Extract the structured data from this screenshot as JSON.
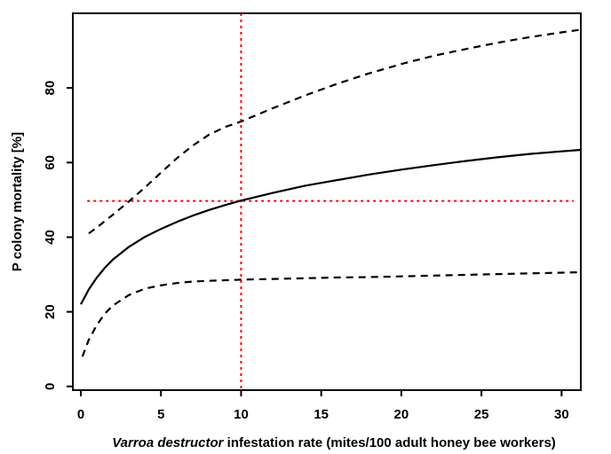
{
  "chart_data": {
    "type": "line",
    "title": "",
    "xlabel_italic": "Varroa destructor",
    "xlabel_rest": " infestation rate (mites/100 adult honey bee workers)",
    "ylabel": "P colony mortality [%]",
    "xlim": [
      -0.5,
      31.2
    ],
    "ylim": [
      -1,
      100
    ],
    "xticks": [
      0,
      5,
      10,
      15,
      20,
      25,
      30
    ],
    "yticks": [
      0,
      20,
      40,
      60,
      80
    ],
    "grid": false,
    "legend": "none",
    "series": [
      {
        "style": "solid",
        "color": "#000000",
        "x": [
          0,
          0.5,
          1,
          1.5,
          2,
          3,
          4,
          5,
          6,
          7,
          8,
          9,
          10,
          12,
          14,
          16,
          18,
          20,
          22,
          24,
          26,
          28,
          30,
          31.2
        ],
        "y": [
          22,
          26,
          29.2,
          31.8,
          34,
          37.4,
          40.1,
          42.2,
          44.1,
          45.8,
          47.3,
          48.6,
          49.8,
          51.9,
          53.8,
          55.3,
          56.8,
          58.1,
          59.3,
          60.4,
          61.4,
          62.3,
          63,
          63.4
        ]
      },
      {
        "style": "dashed",
        "color": "#000000",
        "x": [
          0.5,
          1,
          2,
          3,
          4,
          5,
          6,
          7,
          8,
          9,
          10,
          12,
          14,
          16,
          18,
          20,
          22,
          24,
          26,
          28,
          30,
          31.2
        ],
        "y": [
          41,
          42.6,
          46,
          49.6,
          53.3,
          57.3,
          61.2,
          64.6,
          67.5,
          69.5,
          71,
          74.6,
          78,
          81.1,
          83.9,
          86.4,
          88.6,
          90.4,
          92.1,
          93.6,
          94.9,
          95.6
        ]
      },
      {
        "style": "dashed",
        "color": "#000000",
        "x": [
          0.1,
          0.5,
          1,
          1.5,
          2,
          3,
          4,
          5,
          6,
          7,
          8,
          10,
          12,
          14,
          16,
          18,
          20,
          22,
          24,
          26,
          28,
          30,
          31.2
        ],
        "y": [
          8,
          12.5,
          16.5,
          19.5,
          21.7,
          24.5,
          26.2,
          27.1,
          27.7,
          28.1,
          28.3,
          28.6,
          28.8,
          29,
          29.2,
          29.3,
          29.5,
          29.7,
          29.9,
          30.1,
          30.3,
          30.5,
          30.6
        ]
      }
    ],
    "reference_lines": {
      "color": "#ff0000",
      "x": 10,
      "y": 49.7
    }
  }
}
